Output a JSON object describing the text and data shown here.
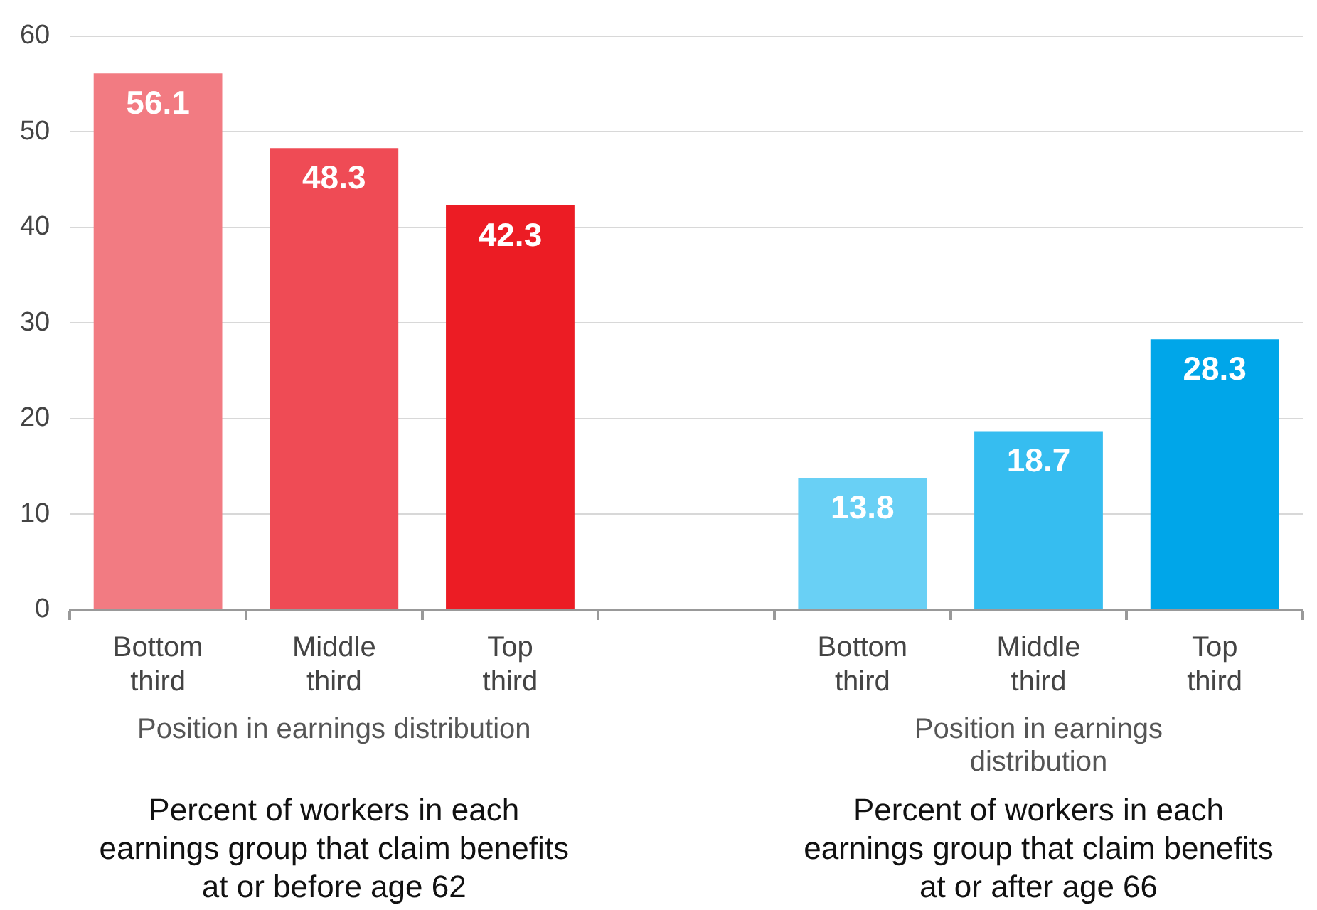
{
  "chart_data": {
    "type": "bar",
    "categories": [
      "Bottom third",
      "Middle third",
      "Top third",
      null,
      "Bottom third",
      "Middle third",
      "Top third"
    ],
    "values": [
      56.1,
      48.3,
      42.3,
      null,
      13.8,
      18.7,
      28.3
    ],
    "colors": [
      "#f27b82",
      "#ef4b55",
      "#ec1c24",
      null,
      "#69d0f5",
      "#36bdf0",
      "#00a6e9"
    ],
    "ylim": [
      0,
      60
    ],
    "yticks": [
      0,
      10,
      20,
      30,
      40,
      50,
      60
    ],
    "grid": "y",
    "data_labels": true,
    "annotations": [
      "Position in earnings distribution",
      "Position in earnings distribution",
      "Percent of workers in each earnings group that claim benefits at or before age 62",
      "Percent of workers in each earnings group that claim benefits at or after age 66"
    ]
  }
}
